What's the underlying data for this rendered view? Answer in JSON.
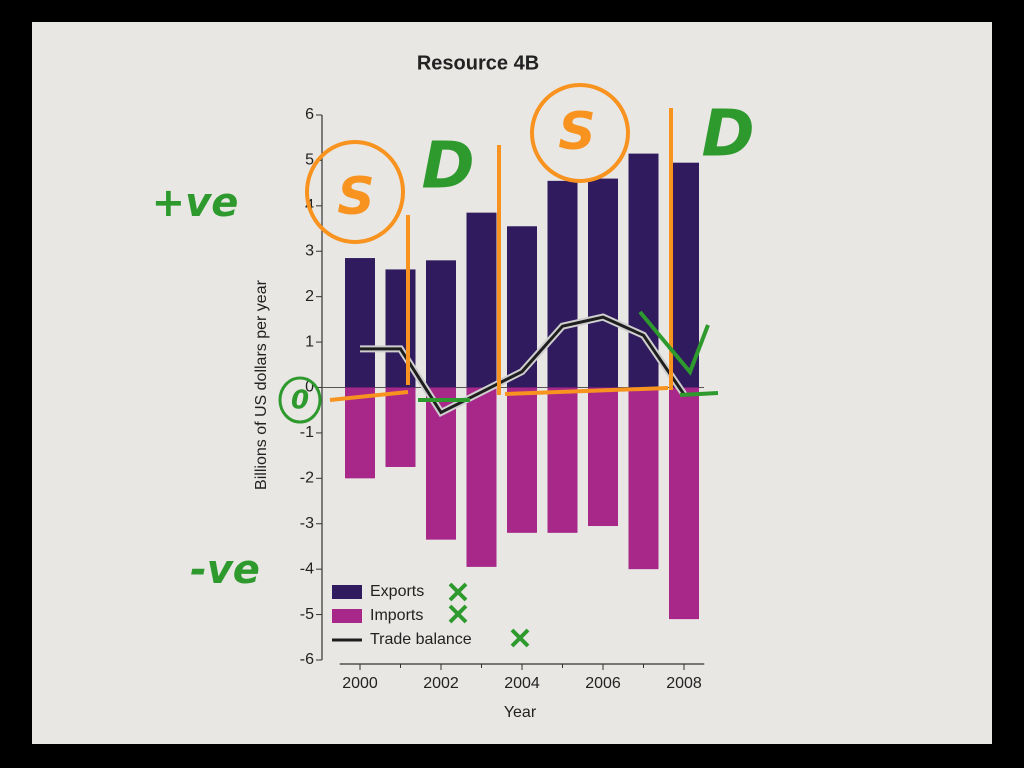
{
  "chart_data": {
    "type": "bar-line",
    "title": "Resource 4B",
    "x_label": "Year",
    "y_label": "Billions of US dollars per year",
    "x": [
      2000,
      2001,
      2002,
      2003,
      2004,
      2005,
      2006,
      2007,
      2008
    ],
    "xlim": [
      1999.5,
      2008.5
    ],
    "xticks": [
      2000,
      2002,
      2004,
      2006,
      2008
    ],
    "ylim": [
      -6,
      6
    ],
    "yticks": [
      -6,
      -5,
      -4,
      -3,
      -2,
      -1,
      0,
      1,
      2,
      3,
      4,
      5,
      6
    ],
    "series": [
      {
        "name": "Exports",
        "kind": "bar",
        "color": "#2f1b5e",
        "values": [
          2.85,
          2.6,
          2.8,
          3.85,
          3.55,
          4.55,
          4.6,
          5.15,
          4.95
        ]
      },
      {
        "name": "Imports",
        "kind": "bar",
        "color": "#a8288a",
        "values": [
          -2.0,
          -1.75,
          -3.35,
          -3.95,
          -3.2,
          -3.2,
          -3.05,
          -4.0,
          -5.1
        ]
      },
      {
        "name": "Trade balance",
        "kind": "line",
        "color": "#1e1e1e",
        "values": [
          0.85,
          0.85,
          -0.55,
          -0.1,
          0.35,
          1.35,
          1.55,
          1.15,
          -0.15
        ]
      }
    ],
    "annotations": [
      "+ve",
      "S",
      "D",
      "S",
      "D",
      "0",
      "-ve"
    ]
  }
}
